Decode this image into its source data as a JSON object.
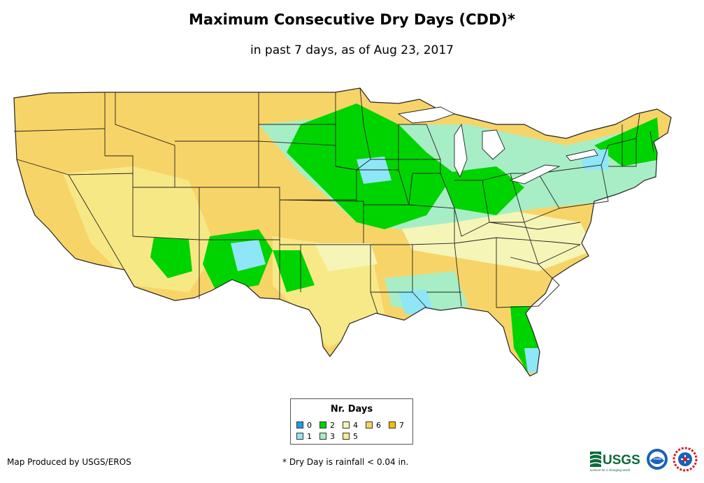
{
  "title": "Maximum Consecutive Dry Days (CDD)*",
  "subtitle": "in past 7 days, as of Aug 23, 2017",
  "legend": {
    "title": "Nr. Days",
    "items": [
      {
        "value": "0",
        "color": "#1aa0e6"
      },
      {
        "value": "1",
        "color": "#8fe6f7"
      },
      {
        "value": "2",
        "color": "#00d400"
      },
      {
        "value": "3",
        "color": "#a7eec6"
      },
      {
        "value": "4",
        "color": "#f5f5b8"
      },
      {
        "value": "5",
        "color": "#f7eb8c"
      },
      {
        "value": "6",
        "color": "#f7d468"
      },
      {
        "value": "7",
        "color": "#f5be00"
      }
    ]
  },
  "credit": "Map Produced by USGS/EROS",
  "footnote": "* Dry Day is rainfall < 0.04 in.",
  "logos": {
    "usgs_text": "USGS",
    "usgs_tagline": "science for a changing world",
    "noaa_text": "noaa",
    "nws_icon": "nws-seal-icon"
  }
}
